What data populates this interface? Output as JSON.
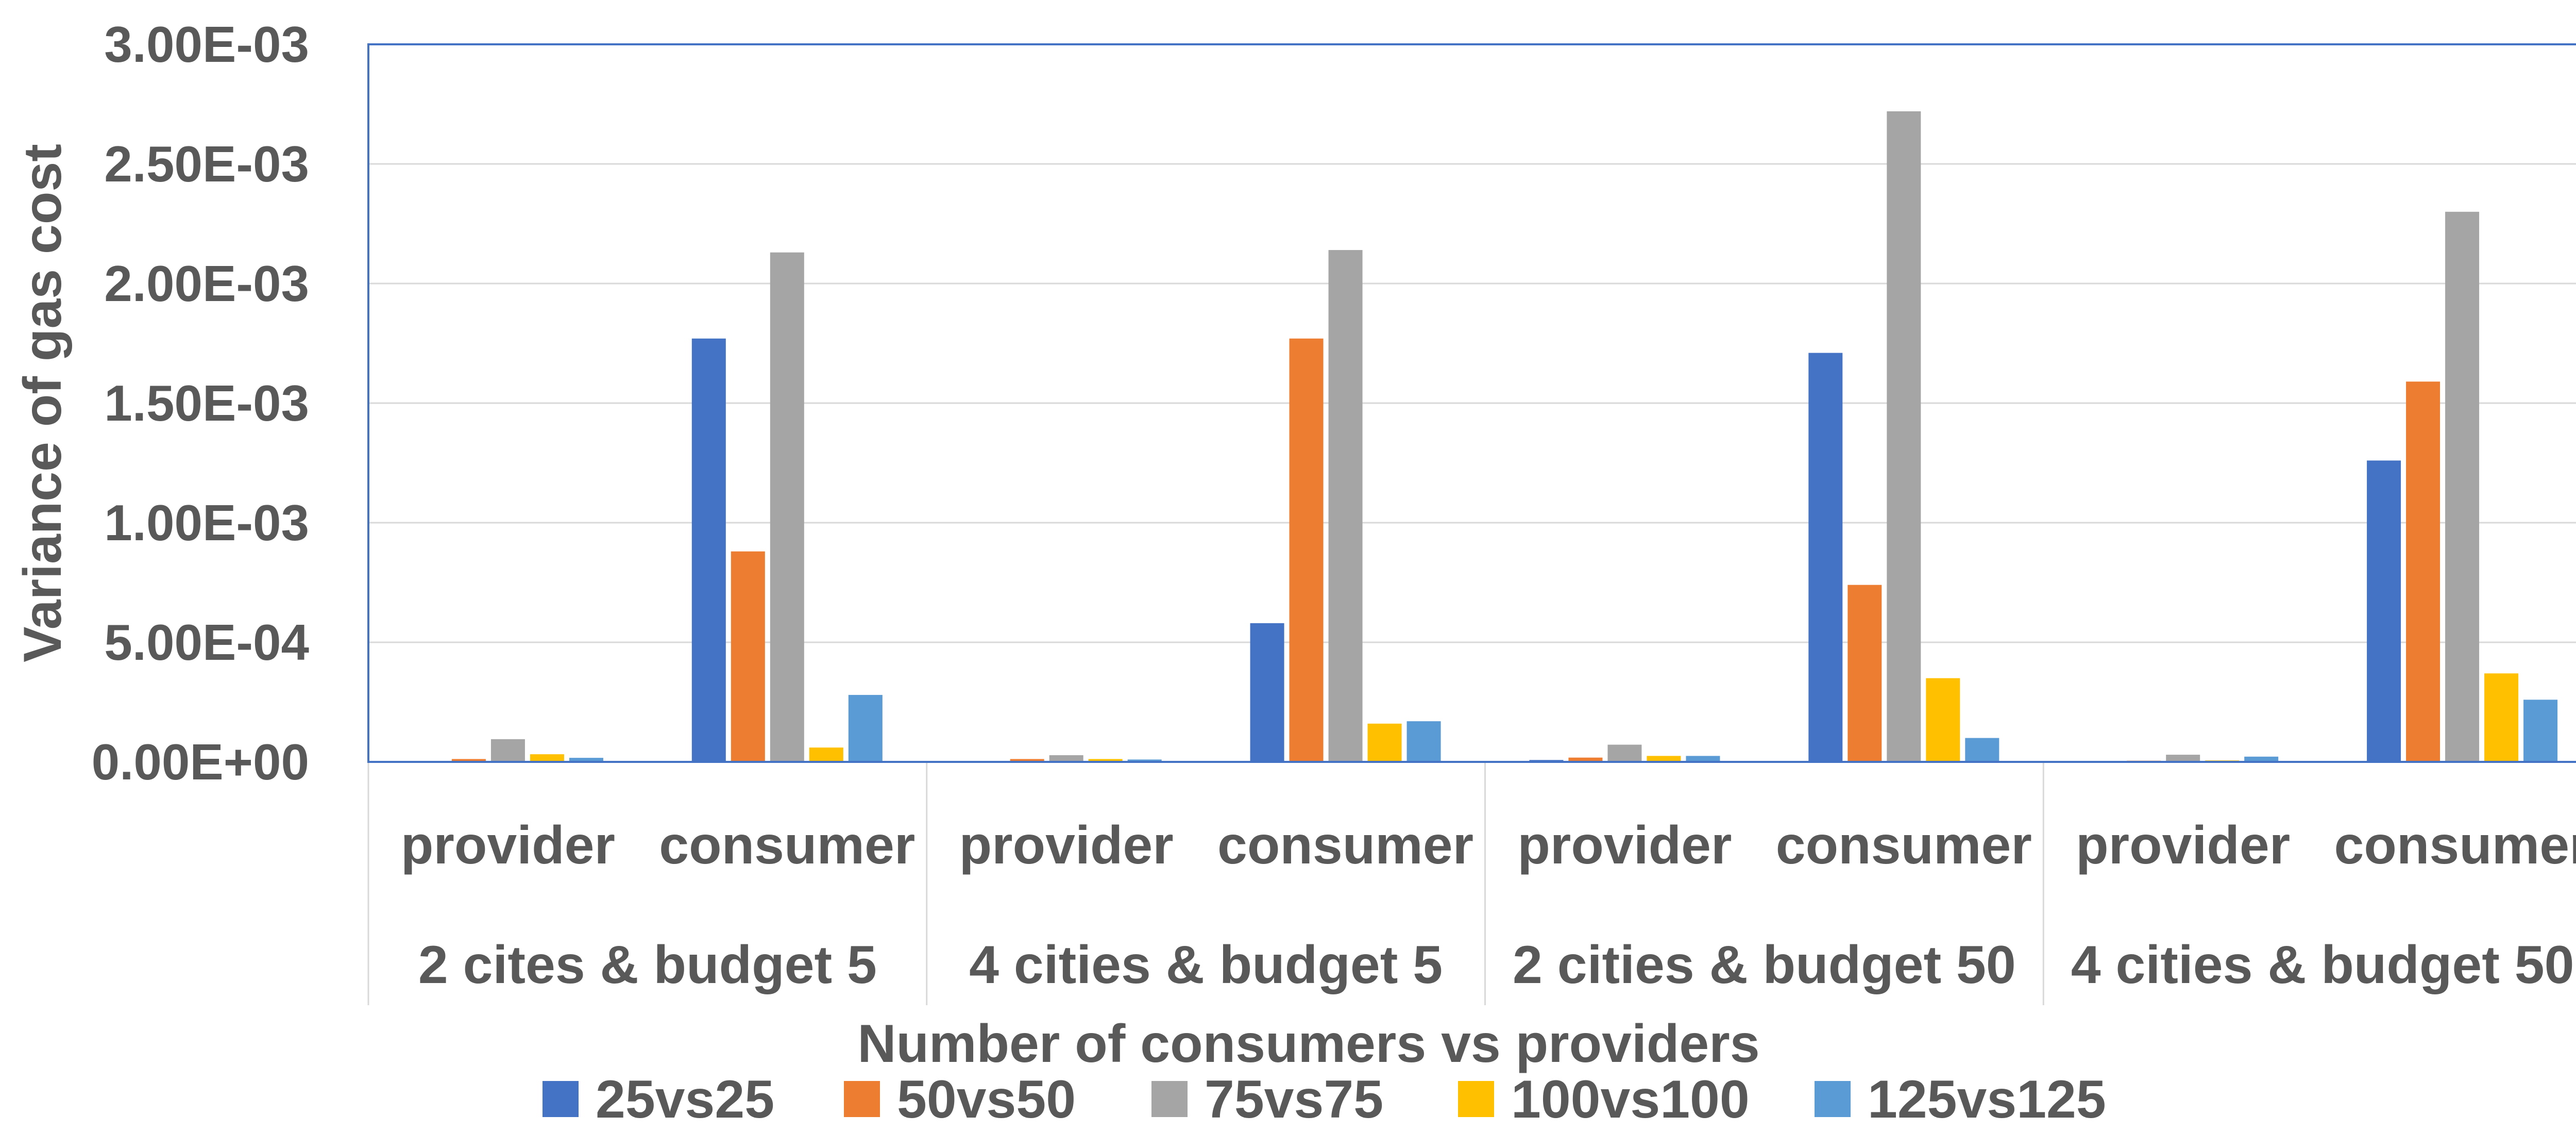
{
  "chart_data": {
    "type": "bar",
    "title": "",
    "xlabel": "Number of consumers vs providers",
    "ylabel": "Variance of gas cost",
    "ylim": [
      0,
      0.003
    ],
    "yticks": [
      "0.00E+00",
      "5.00E-04",
      "1.00E-03",
      "1.50E-03",
      "2.00E-03",
      "2.50E-03",
      "3.00E-03"
    ],
    "grid": true,
    "legend_position": "bottom",
    "groups": [
      "2 cites & budget 5",
      "4 cities & budget 5",
      "2 cities & budget 50",
      "4 cities & budget 50"
    ],
    "categories": [
      "provider",
      "consumer",
      "provider",
      "consumer",
      "provider",
      "consumer",
      "provider",
      "consumer"
    ],
    "series": [
      {
        "name": "25vs25",
        "color": "#4472C4",
        "values": [
          3e-06,
          0.00177,
          1.5e-06,
          0.00058,
          8e-06,
          0.00171,
          4e-06,
          0.00126
        ]
      },
      {
        "name": "50vs50",
        "color": "#ED7D31",
        "values": [
          1.2e-05,
          0.00088,
          1.2e-05,
          0.00177,
          1.8e-05,
          0.00074,
          5e-06,
          0.00159
        ]
      },
      {
        "name": "75vs75",
        "color": "#A5A5A5",
        "values": [
          9.5e-05,
          0.00213,
          2.8e-05,
          0.00214,
          7.2e-05,
          0.00272,
          3e-05,
          0.0023
        ]
      },
      {
        "name": "100vs100",
        "color": "#FFC000",
        "values": [
          3.2e-05,
          6e-05,
          1.2e-05,
          0.00016,
          2.5e-05,
          0.00035,
          6e-06,
          0.00037
        ]
      },
      {
        "name": "125vs125",
        "color": "#5B9BD5",
        "values": [
          1.7e-05,
          0.00028,
          1e-05,
          0.00017,
          2.5e-05,
          0.0001,
          2.2e-05,
          0.00026
        ]
      }
    ]
  }
}
